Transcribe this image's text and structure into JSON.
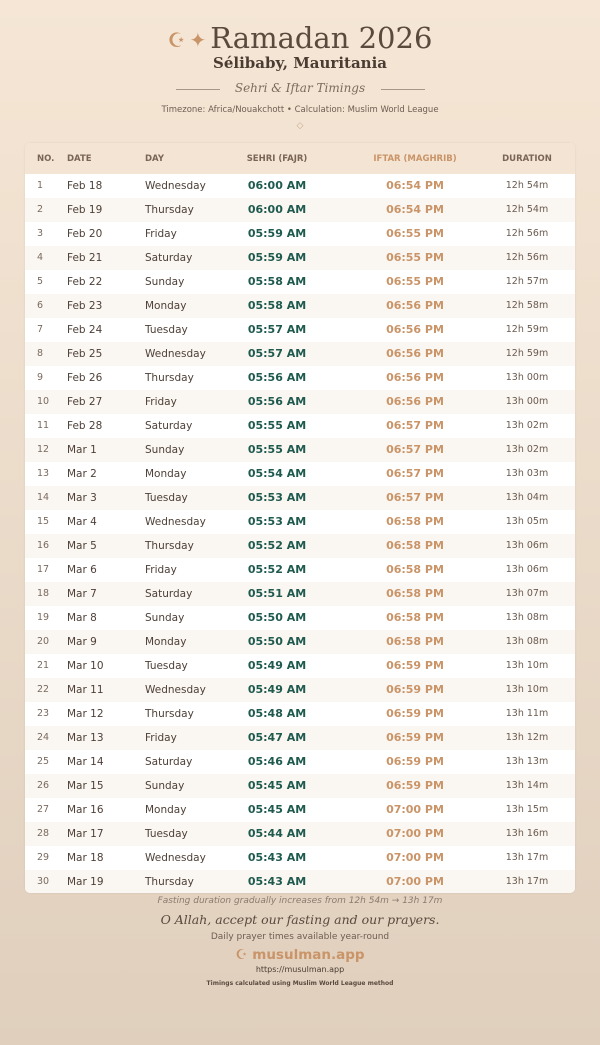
{
  "header": {
    "title": "Ramadan 2026",
    "icons": [
      "crescent-icon",
      "sparkle-icon"
    ],
    "city": "Sélibaby, Mauritania",
    "subtitle": "Sehri & Iftar Timings",
    "meta": "Timezone: Africa/Nouakchott • Calculation: Muslim World League"
  },
  "table": {
    "columns": [
      "NO.",
      "DATE",
      "DAY",
      "SEHRI (FAJR)",
      "IFTAR (MAGHRIB)",
      "DURATION"
    ],
    "rows": [
      [
        "1",
        "Feb 18",
        "Wednesday",
        "06:00 AM",
        "06:54 PM",
        "12h 54m"
      ],
      [
        "2",
        "Feb 19",
        "Thursday",
        "06:00 AM",
        "06:54 PM",
        "12h 54m"
      ],
      [
        "3",
        "Feb 20",
        "Friday",
        "05:59 AM",
        "06:55 PM",
        "12h 56m"
      ],
      [
        "4",
        "Feb 21",
        "Saturday",
        "05:59 AM",
        "06:55 PM",
        "12h 56m"
      ],
      [
        "5",
        "Feb 22",
        "Sunday",
        "05:58 AM",
        "06:55 PM",
        "12h 57m"
      ],
      [
        "6",
        "Feb 23",
        "Monday",
        "05:58 AM",
        "06:56 PM",
        "12h 58m"
      ],
      [
        "7",
        "Feb 24",
        "Tuesday",
        "05:57 AM",
        "06:56 PM",
        "12h 59m"
      ],
      [
        "8",
        "Feb 25",
        "Wednesday",
        "05:57 AM",
        "06:56 PM",
        "12h 59m"
      ],
      [
        "9",
        "Feb 26",
        "Thursday",
        "05:56 AM",
        "06:56 PM",
        "13h 00m"
      ],
      [
        "10",
        "Feb 27",
        "Friday",
        "05:56 AM",
        "06:56 PM",
        "13h 00m"
      ],
      [
        "11",
        "Feb 28",
        "Saturday",
        "05:55 AM",
        "06:57 PM",
        "13h 02m"
      ],
      [
        "12",
        "Mar 1",
        "Sunday",
        "05:55 AM",
        "06:57 PM",
        "13h 02m"
      ],
      [
        "13",
        "Mar 2",
        "Monday",
        "05:54 AM",
        "06:57 PM",
        "13h 03m"
      ],
      [
        "14",
        "Mar 3",
        "Tuesday",
        "05:53 AM",
        "06:57 PM",
        "13h 04m"
      ],
      [
        "15",
        "Mar 4",
        "Wednesday",
        "05:53 AM",
        "06:58 PM",
        "13h 05m"
      ],
      [
        "16",
        "Mar 5",
        "Thursday",
        "05:52 AM",
        "06:58 PM",
        "13h 06m"
      ],
      [
        "17",
        "Mar 6",
        "Friday",
        "05:52 AM",
        "06:58 PM",
        "13h 06m"
      ],
      [
        "18",
        "Mar 7",
        "Saturday",
        "05:51 AM",
        "06:58 PM",
        "13h 07m"
      ],
      [
        "19",
        "Mar 8",
        "Sunday",
        "05:50 AM",
        "06:58 PM",
        "13h 08m"
      ],
      [
        "20",
        "Mar 9",
        "Monday",
        "05:50 AM",
        "06:58 PM",
        "13h 08m"
      ],
      [
        "21",
        "Mar 10",
        "Tuesday",
        "05:49 AM",
        "06:59 PM",
        "13h 10m"
      ],
      [
        "22",
        "Mar 11",
        "Wednesday",
        "05:49 AM",
        "06:59 PM",
        "13h 10m"
      ],
      [
        "23",
        "Mar 12",
        "Thursday",
        "05:48 AM",
        "06:59 PM",
        "13h 11m"
      ],
      [
        "24",
        "Mar 13",
        "Friday",
        "05:47 AM",
        "06:59 PM",
        "13h 12m"
      ],
      [
        "25",
        "Mar 14",
        "Saturday",
        "05:46 AM",
        "06:59 PM",
        "13h 13m"
      ],
      [
        "26",
        "Mar 15",
        "Sunday",
        "05:45 AM",
        "06:59 PM",
        "13h 14m"
      ],
      [
        "27",
        "Mar 16",
        "Monday",
        "05:45 AM",
        "07:00 PM",
        "13h 15m"
      ],
      [
        "28",
        "Mar 17",
        "Tuesday",
        "05:44 AM",
        "07:00 PM",
        "13h 16m"
      ],
      [
        "29",
        "Mar 18",
        "Wednesday",
        "05:43 AM",
        "07:00 PM",
        "13h 17m"
      ],
      [
        "30",
        "Mar 19",
        "Thursday",
        "05:43 AM",
        "07:00 PM",
        "13h 17m"
      ]
    ]
  },
  "footer": {
    "note": "Fasting duration gradually increases from 12h 54m → 13h 17m",
    "dua": "O Allah, accept our fasting and our prayers.",
    "tagline": "Daily prayer times available year-round",
    "brand": "musulman.app",
    "url": "https://musulman.app",
    "method": "Timings calculated using Muslim World League method"
  },
  "colors": {
    "sehri": "#1f5a4f",
    "iftar": "#c99468",
    "text": "#5a4a3e"
  }
}
